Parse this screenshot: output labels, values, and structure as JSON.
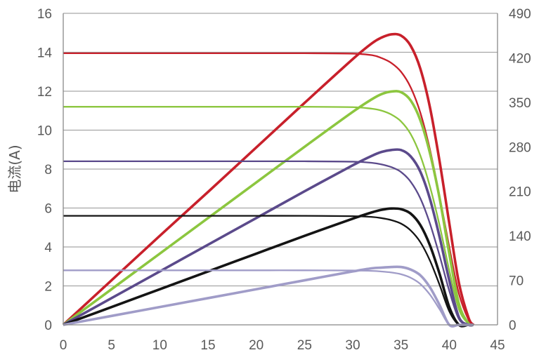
{
  "chart_data": {
    "type": "line",
    "ylabel": "电流(A)",
    "xlim": [
      0,
      45
    ],
    "ylim": [
      0,
      16
    ],
    "y2lim": [
      0,
      490
    ],
    "grid": "horizontal",
    "x_ticks": [
      "0",
      "5",
      "10",
      "15",
      "20",
      "25",
      "30",
      "35",
      "40",
      "45"
    ],
    "y_ticks": [
      "0",
      "2",
      "4",
      "6",
      "8",
      "10",
      "12",
      "14",
      "16"
    ],
    "y2_ticks": [
      "0",
      "70",
      "140",
      "210",
      "280",
      "350",
      "420",
      "490"
    ],
    "x": [
      0,
      5,
      10,
      15,
      20,
      25,
      30,
      32,
      33,
      34,
      35,
      36,
      37,
      38,
      39,
      40,
      41,
      42,
      42.5
    ],
    "series": [
      {
        "color": "#c8202b",
        "current": [
          13.95,
          13.95,
          13.95,
          13.95,
          13.95,
          13.95,
          13.93,
          13.85,
          13.7,
          13.45,
          13.0,
          12.2,
          10.9,
          9.0,
          6.6,
          4.0,
          1.6,
          0.25,
          0
        ],
        "power": [
          0,
          70,
          140,
          209,
          279,
          349,
          418,
          443,
          452,
          457,
          455,
          439,
          403,
          342,
          257,
          160,
          66,
          11,
          0
        ]
      },
      {
        "color": "#8cc63f",
        "current": [
          11.2,
          11.2,
          11.2,
          11.2,
          11.2,
          11.2,
          11.18,
          11.1,
          11.0,
          10.8,
          10.45,
          9.8,
          8.7,
          7.1,
          5.1,
          2.8,
          0.8,
          0.05,
          0
        ],
        "power": [
          0,
          56,
          112,
          168,
          224,
          280,
          335,
          355,
          363,
          367,
          366,
          353,
          322,
          270,
          199,
          112,
          33,
          2,
          0
        ]
      },
      {
        "color": "#5b4a8b",
        "current": [
          8.4,
          8.4,
          8.4,
          8.4,
          8.4,
          8.4,
          8.38,
          8.32,
          8.24,
          8.1,
          7.85,
          7.35,
          6.5,
          5.2,
          3.55,
          1.75,
          0.3,
          0,
          0
        ],
        "power": [
          0,
          42,
          84,
          126,
          168,
          210,
          251,
          266,
          272,
          275,
          275,
          265,
          241,
          198,
          138,
          70,
          12,
          0,
          0
        ]
      },
      {
        "color": "#141414",
        "current": [
          5.6,
          5.6,
          5.6,
          5.6,
          5.6,
          5.6,
          5.58,
          5.54,
          5.48,
          5.38,
          5.2,
          4.85,
          4.25,
          3.3,
          2.05,
          0.7,
          0,
          0,
          0
        ],
        "power": [
          0,
          28,
          56,
          84,
          112,
          140,
          167,
          177,
          181,
          183,
          182,
          175,
          157,
          125,
          80,
          28,
          0,
          0,
          0
        ]
      },
      {
        "color": "#a09cc8",
        "current": [
          2.8,
          2.8,
          2.8,
          2.8,
          2.8,
          2.8,
          2.79,
          2.77,
          2.74,
          2.69,
          2.6,
          2.42,
          2.1,
          1.55,
          0.8,
          0,
          0,
          0,
          0
        ],
        "power": [
          0,
          14,
          28,
          42,
          56,
          70,
          84,
          89,
          90,
          91,
          91,
          87,
          78,
          59,
          31,
          0,
          0,
          0,
          0
        ]
      }
    ]
  }
}
